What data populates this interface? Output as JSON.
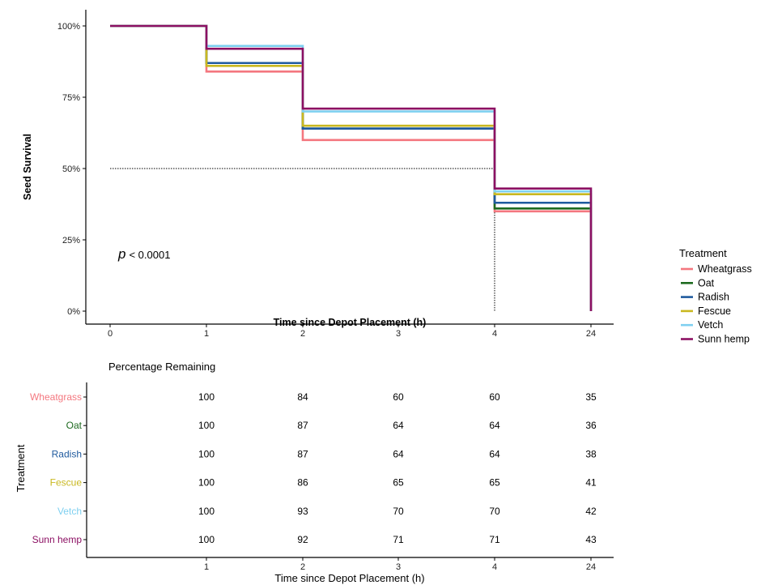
{
  "colors": {
    "Wheatgrass": "#f4777f",
    "Oat": "#1d6a1f",
    "Radish": "#1f5a9e",
    "Fescue": "#c9b820",
    "Vetch": "#7fd0f0",
    "Sunn hemp": "#8c1063"
  },
  "chart_data": [
    {
      "type": "line",
      "subtype": "step (Kaplan-Meier survival)",
      "xlabel": "Time since Depot Placement (h)",
      "ylabel": "Seed Survival",
      "x_ticks": [
        "0",
        "1",
        "2",
        "3",
        "4",
        "24"
      ],
      "y_ticks": [
        "0%",
        "25%",
        "50%",
        "75%",
        "100%"
      ],
      "ylim": [
        0,
        100
      ],
      "annotation": {
        "p_symbol": "p",
        "p_text": "< 0.0001"
      },
      "median_reference": {
        "y": 50,
        "x_end": "4"
      },
      "legend": {
        "title": "Treatment",
        "position": "right"
      },
      "series": [
        {
          "name": "Wheatgrass",
          "x": [
            "0",
            "1",
            "2",
            "4",
            "24"
          ],
          "values": [
            100,
            84,
            60,
            35,
            0
          ]
        },
        {
          "name": "Oat",
          "x": [
            "0",
            "1",
            "2",
            "4",
            "24"
          ],
          "values": [
            100,
            87,
            64,
            36,
            0
          ]
        },
        {
          "name": "Radish",
          "x": [
            "0",
            "1",
            "2",
            "4",
            "24"
          ],
          "values": [
            100,
            87,
            64,
            38,
            0
          ]
        },
        {
          "name": "Fescue",
          "x": [
            "0",
            "1",
            "2",
            "4",
            "24"
          ],
          "values": [
            100,
            86,
            65,
            41,
            0
          ]
        },
        {
          "name": "Vetch",
          "x": [
            "0",
            "1",
            "2",
            "4",
            "24"
          ],
          "values": [
            100,
            93,
            70,
            42,
            0
          ]
        },
        {
          "name": "Sunn hemp",
          "x": [
            "0",
            "1",
            "2",
            "4",
            "24"
          ],
          "values": [
            100,
            92,
            71,
            43,
            0
          ]
        }
      ]
    },
    {
      "type": "table",
      "title": "Percentage Remaining",
      "xlabel": "Time since Depot Placement (h)",
      "ylabel": "Treatment",
      "x_ticks": [
        "1",
        "2",
        "3",
        "4",
        "24"
      ],
      "rows": [
        {
          "name": "Wheatgrass",
          "values": [
            "100",
            "84",
            "60",
            "60",
            "35"
          ]
        },
        {
          "name": "Oat",
          "values": [
            "100",
            "87",
            "64",
            "64",
            "36"
          ]
        },
        {
          "name": "Radish",
          "values": [
            "100",
            "87",
            "64",
            "64",
            "38"
          ]
        },
        {
          "name": "Fescue",
          "values": [
            "100",
            "86",
            "65",
            "65",
            "41"
          ]
        },
        {
          "name": "Vetch",
          "values": [
            "100",
            "93",
            "70",
            "70",
            "42"
          ]
        },
        {
          "name": "Sunn hemp",
          "values": [
            "100",
            "92",
            "71",
            "71",
            "43"
          ]
        }
      ]
    }
  ]
}
